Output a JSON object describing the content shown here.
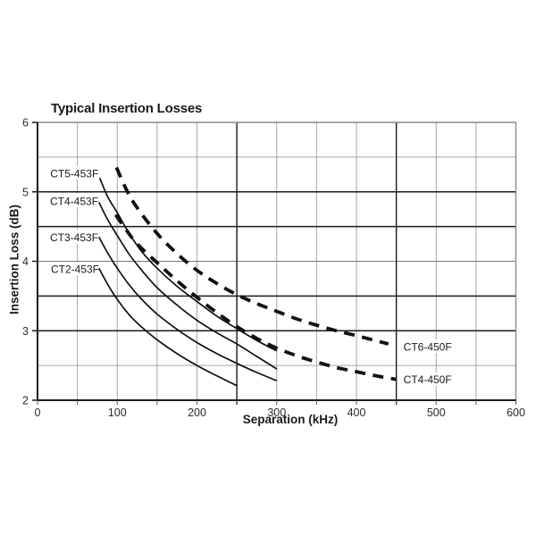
{
  "chart_data": {
    "type": "line",
    "title": "Typical Insertion Losses",
    "xlabel": "Separation (kHz)",
    "ylabel": "Insertion Loss (dB)",
    "xlim": [
      0,
      600
    ],
    "ylim": [
      2,
      6
    ],
    "x_ticks": [
      0,
      100,
      200,
      300,
      400,
      500,
      600
    ],
    "y_ticks": [
      2,
      3,
      4,
      5,
      6
    ],
    "x_grid_step": 50,
    "y_grid_step": 0.5,
    "grid": true,
    "legend_position": "inline-annotations",
    "grid_color_light": "#a6a6a6",
    "grid_color_medium": "#787878",
    "grid_color_dark": "#1a1a1a",
    "axis_color": "#1a1a1a",
    "frame_color": "#8a8a8a",
    "curve_color": "#111111",
    "dark_h_gridlines": [
      5.0,
      4.5,
      3.5,
      3.0
    ],
    "medium_h_gridlines": [
      4.0
    ],
    "dark_v_gridlines": [
      250,
      450
    ],
    "series": [
      {
        "name": "CT5-453F",
        "style": "solid",
        "label_anchor": {
          "x": 16,
          "y": 5.27,
          "align": "start"
        },
        "points": [
          [
            78,
            5.2
          ],
          [
            88,
            4.93
          ],
          [
            100,
            4.7
          ],
          [
            115,
            4.4
          ],
          [
            130,
            4.15
          ],
          [
            150,
            3.9
          ],
          [
            175,
            3.64
          ],
          [
            200,
            3.42
          ],
          [
            225,
            3.21
          ],
          [
            250,
            3.03
          ],
          [
            275,
            2.86
          ],
          [
            300,
            2.71
          ]
        ]
      },
      {
        "name": "CT4-453F",
        "style": "solid",
        "label_anchor": {
          "x": 15.7,
          "y": 4.87,
          "align": "start"
        },
        "points": [
          [
            77,
            4.85
          ],
          [
            88,
            4.6
          ],
          [
            100,
            4.37
          ],
          [
            115,
            4.1
          ],
          [
            130,
            3.88
          ],
          [
            150,
            3.62
          ],
          [
            175,
            3.37
          ],
          [
            200,
            3.15
          ],
          [
            225,
            2.97
          ],
          [
            250,
            2.81
          ],
          [
            275,
            2.63
          ],
          [
            300,
            2.45
          ]
        ]
      },
      {
        "name": "CT3-453F",
        "style": "solid",
        "label_anchor": {
          "x": 15.7,
          "y": 4.35,
          "align": "start"
        },
        "points": [
          [
            77,
            4.35
          ],
          [
            88,
            4.12
          ],
          [
            100,
            3.9
          ],
          [
            115,
            3.66
          ],
          [
            130,
            3.46
          ],
          [
            150,
            3.24
          ],
          [
            175,
            3.02
          ],
          [
            200,
            2.83
          ],
          [
            225,
            2.67
          ],
          [
            250,
            2.53
          ],
          [
            275,
            2.4
          ],
          [
            300,
            2.28
          ]
        ]
      },
      {
        "name": "CT2-453F",
        "style": "solid",
        "label_anchor": {
          "x": 16.8,
          "y": 3.89,
          "align": "start"
        },
        "points": [
          [
            77,
            3.9
          ],
          [
            88,
            3.67
          ],
          [
            100,
            3.45
          ],
          [
            115,
            3.23
          ],
          [
            130,
            3.06
          ],
          [
            150,
            2.87
          ],
          [
            175,
            2.67
          ],
          [
            200,
            2.5
          ],
          [
            225,
            2.35
          ],
          [
            250,
            2.21
          ]
        ]
      },
      {
        "name": "CT6-450F",
        "style": "dashed",
        "label_anchor": {
          "x": 459,
          "y": 2.77,
          "align": "start"
        },
        "points": [
          [
            99,
            5.35
          ],
          [
            112,
            5.02
          ],
          [
            125,
            4.77
          ],
          [
            150,
            4.4
          ],
          [
            175,
            4.11
          ],
          [
            200,
            3.87
          ],
          [
            225,
            3.68
          ],
          [
            250,
            3.52
          ],
          [
            275,
            3.39
          ],
          [
            300,
            3.28
          ],
          [
            325,
            3.17
          ],
          [
            350,
            3.08
          ],
          [
            375,
            3.0
          ],
          [
            400,
            2.93
          ],
          [
            420,
            2.87
          ],
          [
            440,
            2.81
          ]
        ]
      },
      {
        "name": "CT4-450F",
        "style": "dashed",
        "label_anchor": {
          "x": 459,
          "y": 2.3,
          "align": "start"
        },
        "points": [
          [
            98,
            4.67
          ],
          [
            112,
            4.44
          ],
          [
            125,
            4.25
          ],
          [
            150,
            3.98
          ],
          [
            175,
            3.72
          ],
          [
            200,
            3.48
          ],
          [
            225,
            3.26
          ],
          [
            250,
            3.06
          ],
          [
            275,
            2.89
          ],
          [
            300,
            2.75
          ],
          [
            325,
            2.64
          ],
          [
            350,
            2.55
          ],
          [
            375,
            2.47
          ],
          [
            400,
            2.41
          ],
          [
            425,
            2.35
          ],
          [
            450,
            2.3
          ]
        ]
      }
    ]
  }
}
